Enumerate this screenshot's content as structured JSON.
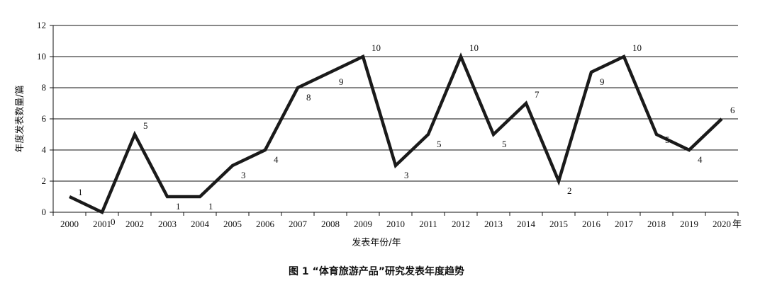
{
  "chart_data": {
    "type": "line",
    "categories": [
      "2000",
      "2001",
      "2002",
      "2003",
      "2004",
      "2005",
      "2006",
      "2007",
      "2008",
      "2009",
      "2010",
      "2011",
      "2012",
      "2013",
      "2014",
      "2015",
      "2016",
      "2017",
      "2018",
      "2019",
      "2020"
    ],
    "x_unit_suffix": "年",
    "values": [
      1,
      0,
      5,
      1,
      1,
      3,
      4,
      8,
      9,
      10,
      3,
      5,
      10,
      5,
      7,
      2,
      9,
      10,
      5,
      4,
      6
    ],
    "data_labels": [
      "1",
      "0",
      "5",
      "1",
      "1",
      "3",
      "4",
      "8",
      "9",
      "10",
      "3",
      "5",
      "10",
      "5",
      "7",
      "2",
      "9",
      "10",
      "5",
      "4",
      "6"
    ],
    "xlabel": "发表年份/年",
    "ylabel": "年度发表数量/篇",
    "ylim": [
      0,
      12
    ],
    "yticks": [
      "0",
      "2",
      "4",
      "6",
      "8",
      "10",
      "12"
    ],
    "grid": true,
    "line_color": "#1a1a1a",
    "title": "图 1 “体育旅游产品”研究发表年度趋势"
  }
}
